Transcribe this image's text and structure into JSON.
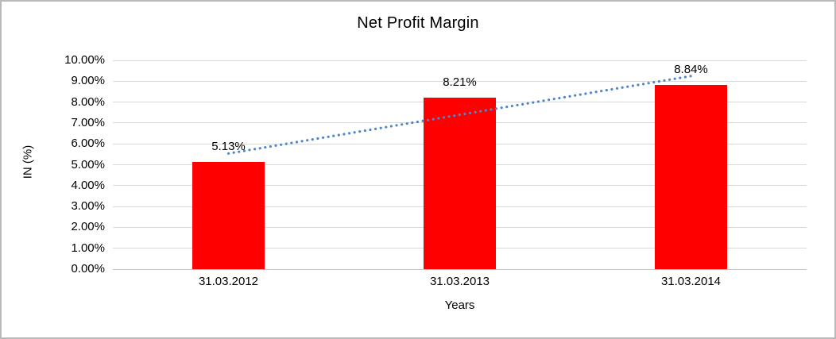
{
  "window": {
    "background": "#ffffff",
    "border_color": "#b9b9b9"
  },
  "chart_data": {
    "type": "bar",
    "title": "Net Profit Margin",
    "xlabel": "Years",
    "ylabel": "IN (%)",
    "categories": [
      "31.03.2012",
      "31.03.2013",
      "31.03.2014"
    ],
    "series": [
      {
        "name": "Net Profit Margin",
        "values": [
          5.13,
          8.21,
          8.84
        ]
      }
    ],
    "value_labels": [
      "5.13%",
      "8.21%",
      "8.84%"
    ],
    "ylim": [
      0,
      10
    ],
    "y_ticks": [
      {
        "value": 0,
        "label": "0.00%"
      },
      {
        "value": 1,
        "label": "1.00%"
      },
      {
        "value": 2,
        "label": "2.00%"
      },
      {
        "value": 3,
        "label": "3.00%"
      },
      {
        "value": 4,
        "label": "4.00%"
      },
      {
        "value": 5,
        "label": "5.00%"
      },
      {
        "value": 6,
        "label": "6.00%"
      },
      {
        "value": 7,
        "label": "7.00%"
      },
      {
        "value": 8,
        "label": "8.00%"
      },
      {
        "value": 9,
        "label": "9.00%"
      },
      {
        "value": 10,
        "label": "10.00%"
      }
    ],
    "grid": true,
    "legend": "none",
    "colors": {
      "bar": "#ff0000",
      "trendline": "#4e86c8",
      "gridline": "#d9d9d9",
      "axis_line": "#c6c6c6",
      "text": "#000000"
    },
    "trendline": {
      "type": "linear",
      "style": "dotted"
    }
  }
}
